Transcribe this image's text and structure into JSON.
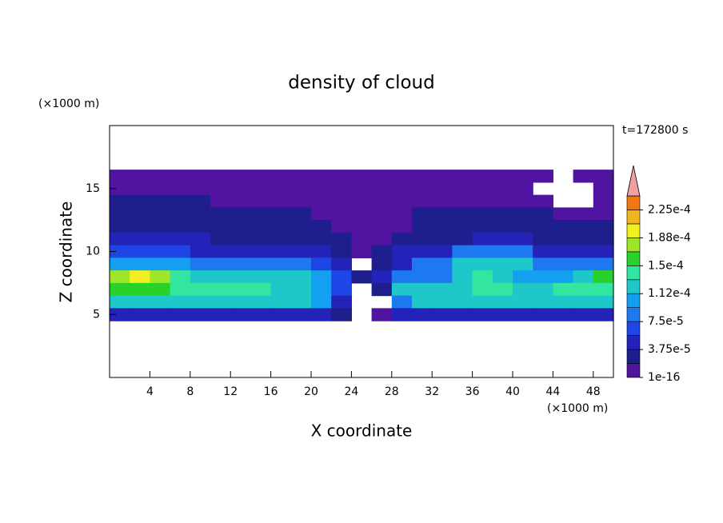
{
  "chart_data": {
    "type": "contour",
    "title": "density of cloud",
    "x_label": "X coordinate",
    "y_label": "Z coordinate",
    "x_unit": "(×1000 m)",
    "y_unit": "(×1000 m)",
    "time_label": "t=172800 s",
    "xlim": [
      0,
      50
    ],
    "ylim": [
      0,
      20
    ],
    "xticks": [
      4,
      8,
      12,
      16,
      20,
      24,
      28,
      32,
      36,
      40,
      44,
      48
    ],
    "yticks": [
      5,
      10,
      15
    ],
    "x": [
      1,
      3,
      5,
      7,
      9,
      11,
      13,
      15,
      17,
      19,
      21,
      23,
      25,
      27,
      29,
      31,
      33,
      35,
      37,
      39,
      41,
      43,
      45,
      47,
      49
    ],
    "y": [
      16,
      15,
      14,
      13,
      12,
      11,
      10,
      9,
      8,
      7,
      6,
      5
    ],
    "z": [
      [
        1e-05,
        1e-05,
        1e-05,
        1e-05,
        1e-05,
        1e-05,
        1e-05,
        1e-05,
        1e-05,
        1e-05,
        1e-05,
        1e-05,
        1e-05,
        1e-05,
        1e-05,
        1e-05,
        1e-05,
        1e-05,
        1e-05,
        1e-05,
        1e-05,
        1e-05,
        null,
        1e-05,
        1e-05
      ],
      [
        1e-05,
        1e-05,
        1e-05,
        1e-05,
        1e-05,
        1e-05,
        1e-05,
        1e-05,
        1e-05,
        1e-05,
        1e-05,
        1e-05,
        1e-05,
        1e-05,
        1e-05,
        1e-05,
        1e-05,
        1e-05,
        1e-05,
        1e-05,
        1e-05,
        null,
        null,
        null,
        1e-05
      ],
      [
        3e-05,
        3e-05,
        3e-05,
        3e-05,
        3e-05,
        1e-05,
        1e-05,
        1e-05,
        1e-05,
        1e-05,
        1e-05,
        1e-05,
        1e-05,
        1e-05,
        1e-05,
        1e-05,
        1e-05,
        1e-05,
        1e-05,
        1e-05,
        1e-05,
        1e-05,
        null,
        null,
        1e-05
      ],
      [
        3e-05,
        3e-05,
        3e-05,
        3e-05,
        3e-05,
        3e-05,
        3e-05,
        3e-05,
        3e-05,
        3e-05,
        1e-05,
        1e-05,
        1e-05,
        1e-05,
        1e-05,
        3e-05,
        3e-05,
        3e-05,
        3e-05,
        3e-05,
        3e-05,
        3e-05,
        1e-05,
        1e-05,
        1e-05
      ],
      [
        3e-05,
        3e-05,
        3e-05,
        3e-05,
        3e-05,
        3e-05,
        3e-05,
        3e-05,
        3e-05,
        3e-05,
        3e-05,
        1e-05,
        1e-05,
        1e-05,
        1e-05,
        3e-05,
        3e-05,
        3e-05,
        3e-05,
        3e-05,
        3e-05,
        3e-05,
        3e-05,
        3e-05,
        3e-05
      ],
      [
        5e-05,
        5e-05,
        5e-05,
        5e-05,
        5e-05,
        3e-05,
        3e-05,
        3e-05,
        3e-05,
        3e-05,
        3e-05,
        3e-05,
        1e-05,
        1e-05,
        3e-05,
        3e-05,
        3e-05,
        3e-05,
        5e-05,
        5e-05,
        5e-05,
        3e-05,
        3e-05,
        3e-05,
        3e-05
      ],
      [
        6.5e-05,
        6.5e-05,
        6.5e-05,
        6.5e-05,
        5e-05,
        5e-05,
        5e-05,
        5e-05,
        5e-05,
        5e-05,
        5e-05,
        3e-05,
        1e-05,
        3e-05,
        5e-05,
        5e-05,
        5e-05,
        8.5e-05,
        8.5e-05,
        8.5e-05,
        8.5e-05,
        5e-05,
        5e-05,
        5e-05,
        5e-05
      ],
      [
        0.0001,
        0.0001,
        0.0001,
        0.0001,
        8.5e-05,
        8.5e-05,
        8.5e-05,
        8.5e-05,
        8.5e-05,
        8.5e-05,
        6.5e-05,
        5e-05,
        null,
        3e-05,
        5e-05,
        8.5e-05,
        8.5e-05,
        0.00012,
        0.00012,
        0.00012,
        0.00012,
        8.5e-05,
        8.5e-05,
        8.5e-05,
        8.5e-05
      ],
      [
        0.00018,
        0.0002,
        0.00018,
        0.00014,
        0.00012,
        0.00012,
        0.00012,
        0.00012,
        0.00012,
        0.00012,
        0.0001,
        6.5e-05,
        3e-05,
        5e-05,
        8.5e-05,
        8.5e-05,
        8.5e-05,
        0.00012,
        0.00014,
        0.00012,
        0.0001,
        0.0001,
        0.0001,
        0.00012,
        0.00016
      ],
      [
        0.00016,
        0.00016,
        0.00016,
        0.00014,
        0.00014,
        0.00014,
        0.00014,
        0.00014,
        0.00012,
        0.00012,
        0.0001,
        6.5e-05,
        null,
        3e-05,
        0.00012,
        0.00012,
        0.00012,
        0.00012,
        0.00014,
        0.00014,
        0.00012,
        0.00012,
        0.00014,
        0.00014,
        0.00014
      ],
      [
        0.00012,
        0.00012,
        0.00012,
        0.00012,
        0.00012,
        0.00012,
        0.00012,
        0.00012,
        0.00012,
        0.00012,
        0.0001,
        5e-05,
        null,
        null,
        8.5e-05,
        0.00012,
        0.00012,
        0.00012,
        0.00012,
        0.00012,
        0.00012,
        0.00012,
        0.00012,
        0.00012,
        0.00012
      ],
      [
        5e-05,
        5e-05,
        5e-05,
        5e-05,
        5e-05,
        5e-05,
        5e-05,
        5e-05,
        5e-05,
        5e-05,
        5e-05,
        3e-05,
        null,
        1e-05,
        5e-05,
        5e-05,
        5e-05,
        5e-05,
        5e-05,
        5e-05,
        5e-05,
        5e-05,
        5e-05,
        5e-05,
        5e-05
      ]
    ],
    "colorbar": {
      "levels": [
        1e-16,
        1.875e-05,
        3.75e-05,
        5.625e-05,
        7.5e-05,
        9.375e-05,
        0.0001125,
        0.00013125,
        0.00015,
        0.00016875,
        0.0001875,
        0.00020625,
        0.000225,
        0.00024375
      ],
      "colors": [
        "#5014a0",
        "#1e1e8c",
        "#2323b9",
        "#1e46e6",
        "#1e78f0",
        "#14a0f0",
        "#1ec8c8",
        "#32e6a0",
        "#28d228",
        "#a0e628",
        "#f0f01e",
        "#f0b41e",
        "#f07814"
      ],
      "extend_color": "#f0a0a0",
      "ticks": [
        {
          "value": 1e-16,
          "label": "1e-16"
        },
        {
          "value": 3.75e-05,
          "label": "3.75e-5"
        },
        {
          "value": 7.5e-05,
          "label": "7.5e-5"
        },
        {
          "value": 0.0001125,
          "label": "1.12e-4"
        },
        {
          "value": 0.00015,
          "label": "1.5e-4"
        },
        {
          "value": 0.0001875,
          "label": "1.88e-4"
        },
        {
          "value": 0.000225,
          "label": "2.25e-4"
        }
      ]
    }
  }
}
